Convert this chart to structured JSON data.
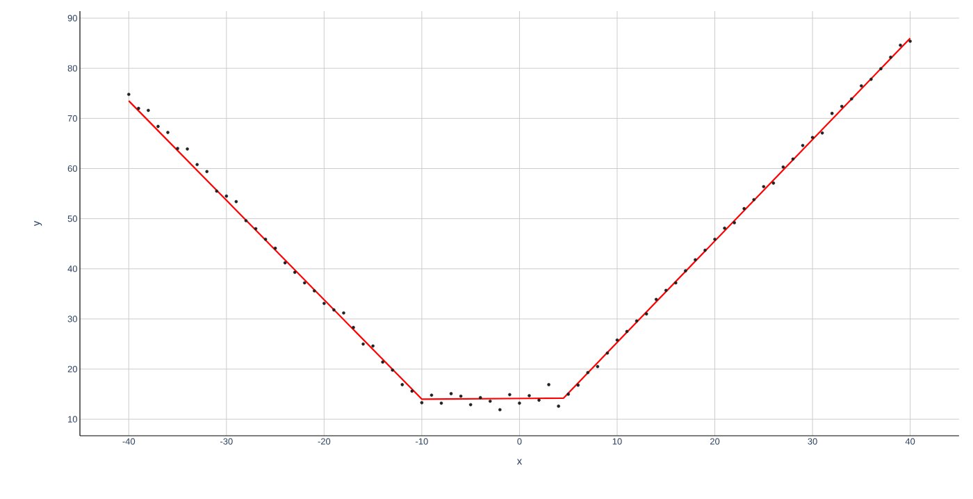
{
  "chart_data": {
    "type": "scatter",
    "xlabel": "x",
    "ylabel": "y",
    "xlim": [
      -45,
      45
    ],
    "ylim": [
      6.7,
      91.4
    ],
    "xticks": [
      -40,
      -30,
      -20,
      -10,
      0,
      10,
      20,
      30,
      40
    ],
    "yticks": [
      10,
      20,
      30,
      40,
      50,
      60,
      70,
      80,
      90
    ],
    "grid": true,
    "series": [
      {
        "marker": "circle",
        "color": "#222222",
        "x": [
          -40,
          -39,
          -38,
          -37,
          -36,
          -35,
          -34,
          -33,
          -32,
          -31,
          -30,
          -29,
          -28,
          -27,
          -26,
          -25,
          -24,
          -23,
          -22,
          -21,
          -20,
          -19,
          -18,
          -17,
          -16,
          -15,
          -14,
          -13,
          -12,
          -11,
          -10,
          -9,
          -8,
          -7,
          -6,
          -5,
          -4,
          -3,
          -2,
          -1,
          0,
          1,
          2,
          3,
          4,
          5,
          6,
          7,
          8,
          9,
          10,
          11,
          12,
          13,
          14,
          15,
          16,
          17,
          18,
          19,
          20,
          21,
          22,
          23,
          24,
          25,
          26,
          27,
          28,
          29,
          30,
          31,
          32,
          33,
          34,
          35,
          36,
          37,
          38,
          39,
          40
        ],
        "values": [
          74.8,
          72.0,
          71.6,
          68.4,
          67.2,
          64.0,
          63.9,
          60.8,
          59.4,
          55.5,
          54.5,
          53.4,
          49.6,
          48.0,
          45.9,
          44.1,
          41.2,
          39.3,
          37.2,
          35.6,
          33.1,
          31.8,
          31.2,
          28.3,
          25.0,
          24.6,
          21.4,
          19.8,
          16.9,
          15.6,
          13.3,
          14.8,
          13.2,
          15.1,
          14.6,
          12.9,
          14.3,
          13.6,
          11.9,
          14.9,
          13.2,
          14.7,
          13.8,
          16.9,
          12.6,
          15.0,
          16.8,
          19.3,
          20.5,
          23.2,
          25.8,
          27.5,
          29.6,
          31.0,
          33.9,
          35.7,
          37.2,
          39.6,
          41.8,
          43.7,
          45.9,
          48.1,
          49.2,
          52.0,
          53.8,
          56.4,
          57.1,
          60.3,
          61.9,
          64.6,
          66.2,
          67.1,
          71.0,
          72.4,
          73.9,
          76.5,
          77.8,
          79.9,
          82.2,
          84.6,
          85.4
        ]
      },
      {
        "type": "line",
        "marker": "none",
        "color": "#ff0000",
        "x": [
          -40,
          -10,
          4.5,
          40
        ],
        "values": [
          73.5,
          14,
          14.2,
          86
        ]
      }
    ]
  }
}
